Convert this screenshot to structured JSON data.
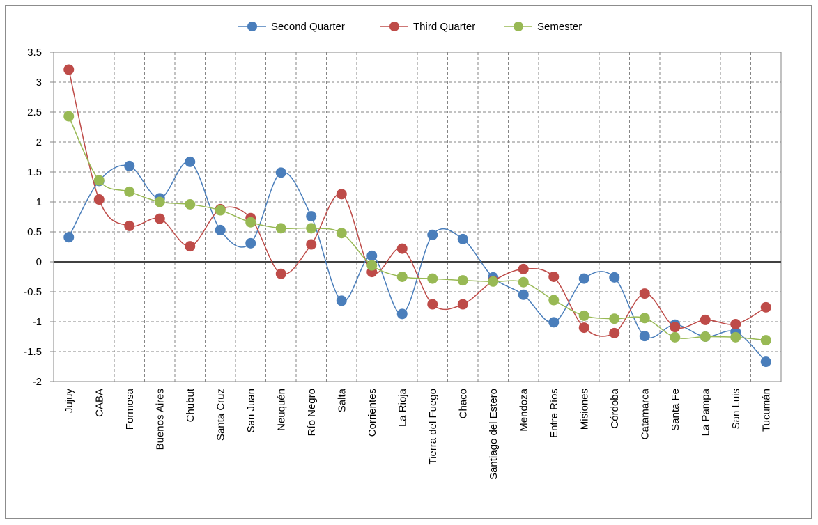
{
  "chart_data": {
    "type": "line",
    "title": "",
    "xlabel": "",
    "ylabel": "",
    "ylim": [
      -2,
      3.5
    ],
    "ytick_step": 0.5,
    "y_ticks": [
      "3.5",
      "3",
      "2.5",
      "2",
      "1.5",
      "1",
      "0.5",
      "0",
      "-0.5",
      "-1",
      "-1.5",
      "-2"
    ],
    "grid": true,
    "smooth": true,
    "legend_position": "top-center",
    "categories": [
      "Jujuy",
      "CABA",
      "Formosa",
      "Buenos Aires",
      "Chubut",
      "Santa Cruz",
      "San Juan",
      "Neuquén",
      "Río Negro",
      "Salta",
      "Corrientes",
      "La Rioja",
      "Tierra del Fuego",
      "Chaco",
      "Santiago del Estero",
      "Mendoza",
      "Entre Ríos",
      "Misiones",
      "Córdoba",
      "Catamarca",
      "Santa Fe",
      "La Pampa",
      "San Luis",
      "Tucumán"
    ],
    "series": [
      {
        "name": "Second Quarter",
        "color": "#4a7ebb",
        "values": [
          0.41,
          1.35,
          1.6,
          1.06,
          1.67,
          0.53,
          0.31,
          1.49,
          0.76,
          -0.65,
          0.1,
          -0.87,
          0.45,
          0.38,
          -0.26,
          -0.55,
          -1.01,
          -0.28,
          -0.26,
          -1.24,
          -1.05,
          -1.25,
          -1.17,
          -1.67
        ]
      },
      {
        "name": "Third Quarter",
        "color": "#be4b48",
        "values": [
          3.21,
          1.04,
          0.6,
          0.72,
          0.26,
          0.88,
          0.73,
          -0.2,
          0.29,
          1.13,
          -0.17,
          0.22,
          -0.71,
          -0.71,
          -0.32,
          -0.12,
          -0.25,
          -1.1,
          -1.19,
          -0.53,
          -1.09,
          -0.97,
          -1.04,
          -0.76
        ]
      },
      {
        "name": "Semester",
        "color": "#98b954",
        "values": [
          2.43,
          1.36,
          1.17,
          1.0,
          0.96,
          0.86,
          0.66,
          0.56,
          0.56,
          0.48,
          -0.06,
          -0.25,
          -0.28,
          -0.31,
          -0.33,
          -0.34,
          -0.64,
          -0.9,
          -0.95,
          -0.94,
          -1.26,
          -1.25,
          -1.26,
          -1.31
        ]
      }
    ]
  }
}
